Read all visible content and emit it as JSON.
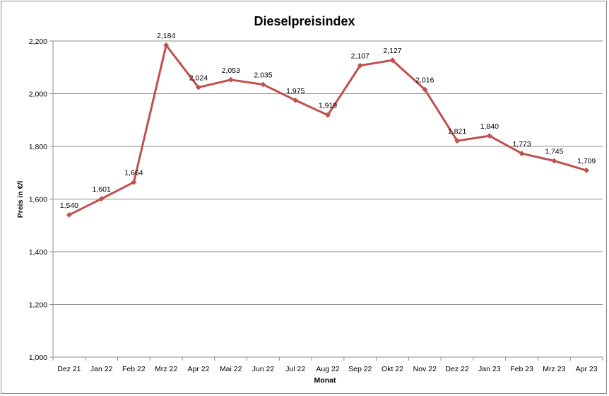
{
  "chart_data": {
    "type": "line",
    "title": "Dieselpreisindex",
    "xlabel": "Monat",
    "ylabel": "Preis in €/l",
    "categories": [
      "Dez 21",
      "Jan 22",
      "Feb 22",
      "Mrz 22",
      "Apr 22",
      "Mai 22",
      "Jun 22",
      "Jul 22",
      "Aug 22",
      "Sep 22",
      "Okt 22",
      "Nov 22",
      "Dez 22",
      "Jan 23",
      "Feb 23",
      "Mrz 23",
      "Apr 23"
    ],
    "series": [
      {
        "values": [
          1.54,
          1.601,
          1.664,
          2.184,
          2.024,
          2.053,
          2.035,
          1.975,
          1.919,
          2.107,
          2.127,
          2.016,
          1.821,
          1.84,
          1.773,
          1.745,
          1.709
        ],
        "data_labels": [
          "1,540",
          "1,601",
          "1,664",
          "2,184",
          "2,024",
          "2,053",
          "2,035",
          "1,975",
          "1,919",
          "2,107",
          "2,127",
          "2,016",
          "1,821",
          "1,840",
          "1,773",
          "1,745",
          "1,709"
        ],
        "color": "#c0504d"
      }
    ],
    "ylim": [
      1.0,
      2.2
    ],
    "y_ticks": [
      1.0,
      1.2,
      1.4,
      1.6,
      1.8,
      2.0,
      2.2
    ],
    "y_tick_labels": [
      "1,000",
      "1,200",
      "1,400",
      "1,600",
      "1,800",
      "2,000",
      "2,200"
    ],
    "grid": "horizontal",
    "legend": "none",
    "colors": {
      "line": "#c0504d",
      "grid": "#8c8c8c",
      "axis": "#8c8c8c"
    }
  }
}
